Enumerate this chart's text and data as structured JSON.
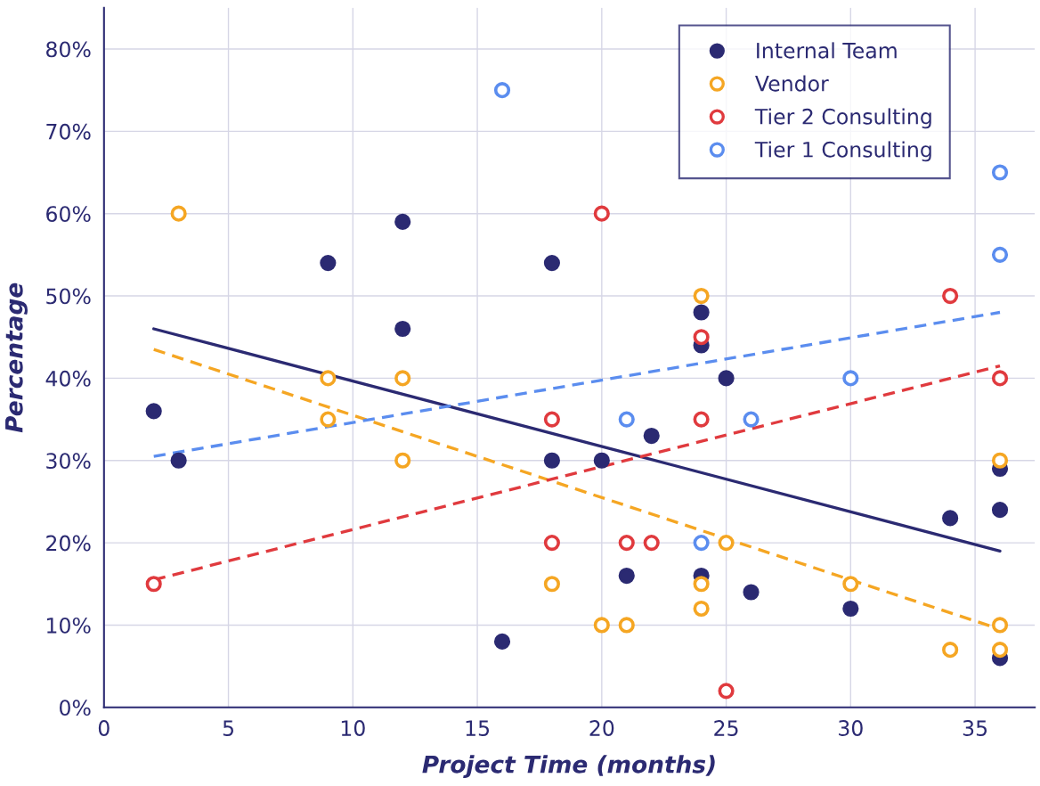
{
  "chart_data": {
    "type": "scatter",
    "xlabel": "Project Time (months)",
    "ylabel": "Percentage",
    "xlim": [
      0,
      37.4
    ],
    "ylim": [
      0,
      85
    ],
    "xticks": [
      0,
      5,
      10,
      15,
      20,
      25,
      30,
      35
    ],
    "yticks": [
      {
        "value": 0,
        "label": "0%"
      },
      {
        "value": 10,
        "label": "10%"
      },
      {
        "value": 20,
        "label": "20%"
      },
      {
        "value": 30,
        "label": "30%"
      },
      {
        "value": 40,
        "label": "40%"
      },
      {
        "value": 50,
        "label": "50%"
      },
      {
        "value": 60,
        "label": "60%"
      },
      {
        "value": 70,
        "label": "70%"
      },
      {
        "value": 80,
        "label": "80%"
      }
    ],
    "grid": true,
    "legend": "top right",
    "series": [
      {
        "name": "Internal Team",
        "color": "#2b2a72",
        "marker": "circle",
        "x": [
          2,
          3,
          9,
          12,
          12,
          16,
          18,
          18,
          20,
          21,
          22,
          24,
          24,
          24,
          25,
          26,
          30,
          34,
          36,
          36,
          36
        ],
        "values": [
          36,
          30,
          54,
          59,
          46,
          8,
          54,
          30,
          30,
          16,
          33,
          48,
          44,
          16,
          40,
          14,
          12,
          23,
          29,
          24,
          6
        ]
      },
      {
        "name": "Vendor",
        "color": "#f5a623",
        "marker": "circle",
        "x": [
          3,
          9,
          9,
          12,
          12,
          18,
          20,
          21,
          24,
          24,
          24,
          25,
          30,
          34,
          36,
          36,
          36
        ],
        "values": [
          60,
          40,
          35,
          40,
          30,
          15,
          10,
          10,
          50,
          15,
          12,
          20,
          15,
          7,
          30,
          10,
          7
        ]
      },
      {
        "name": "Tier 2 Consulting",
        "color": "#e03a3e",
        "marker": "circle",
        "x": [
          2,
          18,
          18,
          20,
          21,
          22,
          24,
          24,
          25,
          34,
          36
        ],
        "values": [
          15,
          35,
          20,
          60,
          20,
          20,
          45,
          35,
          2,
          50,
          40
        ]
      },
      {
        "name": "Tier 1 Consulting",
        "color": "#5b8def",
        "marker": "circle",
        "x": [
          16,
          21,
          24,
          26,
          30,
          36,
          36
        ],
        "values": [
          75,
          35,
          20,
          35,
          40,
          65,
          55
        ]
      },
      {
        "type": "line",
        "color": "#2b2a72",
        "line_style": "solid",
        "x": [
          2,
          36
        ],
        "values": [
          46,
          19
        ]
      },
      {
        "type": "line",
        "color": "#f5a623",
        "line_style": "dashed",
        "x": [
          2,
          36
        ],
        "values": [
          43.5,
          9.5
        ]
      },
      {
        "type": "line",
        "color": "#e03a3e",
        "line_style": "dashed",
        "x": [
          2,
          36
        ],
        "values": [
          15.5,
          41.5
        ]
      },
      {
        "type": "line",
        "color": "#5b8def",
        "line_style": "dashed",
        "x": [
          2,
          36
        ],
        "values": [
          30.5,
          48
        ]
      }
    ]
  }
}
